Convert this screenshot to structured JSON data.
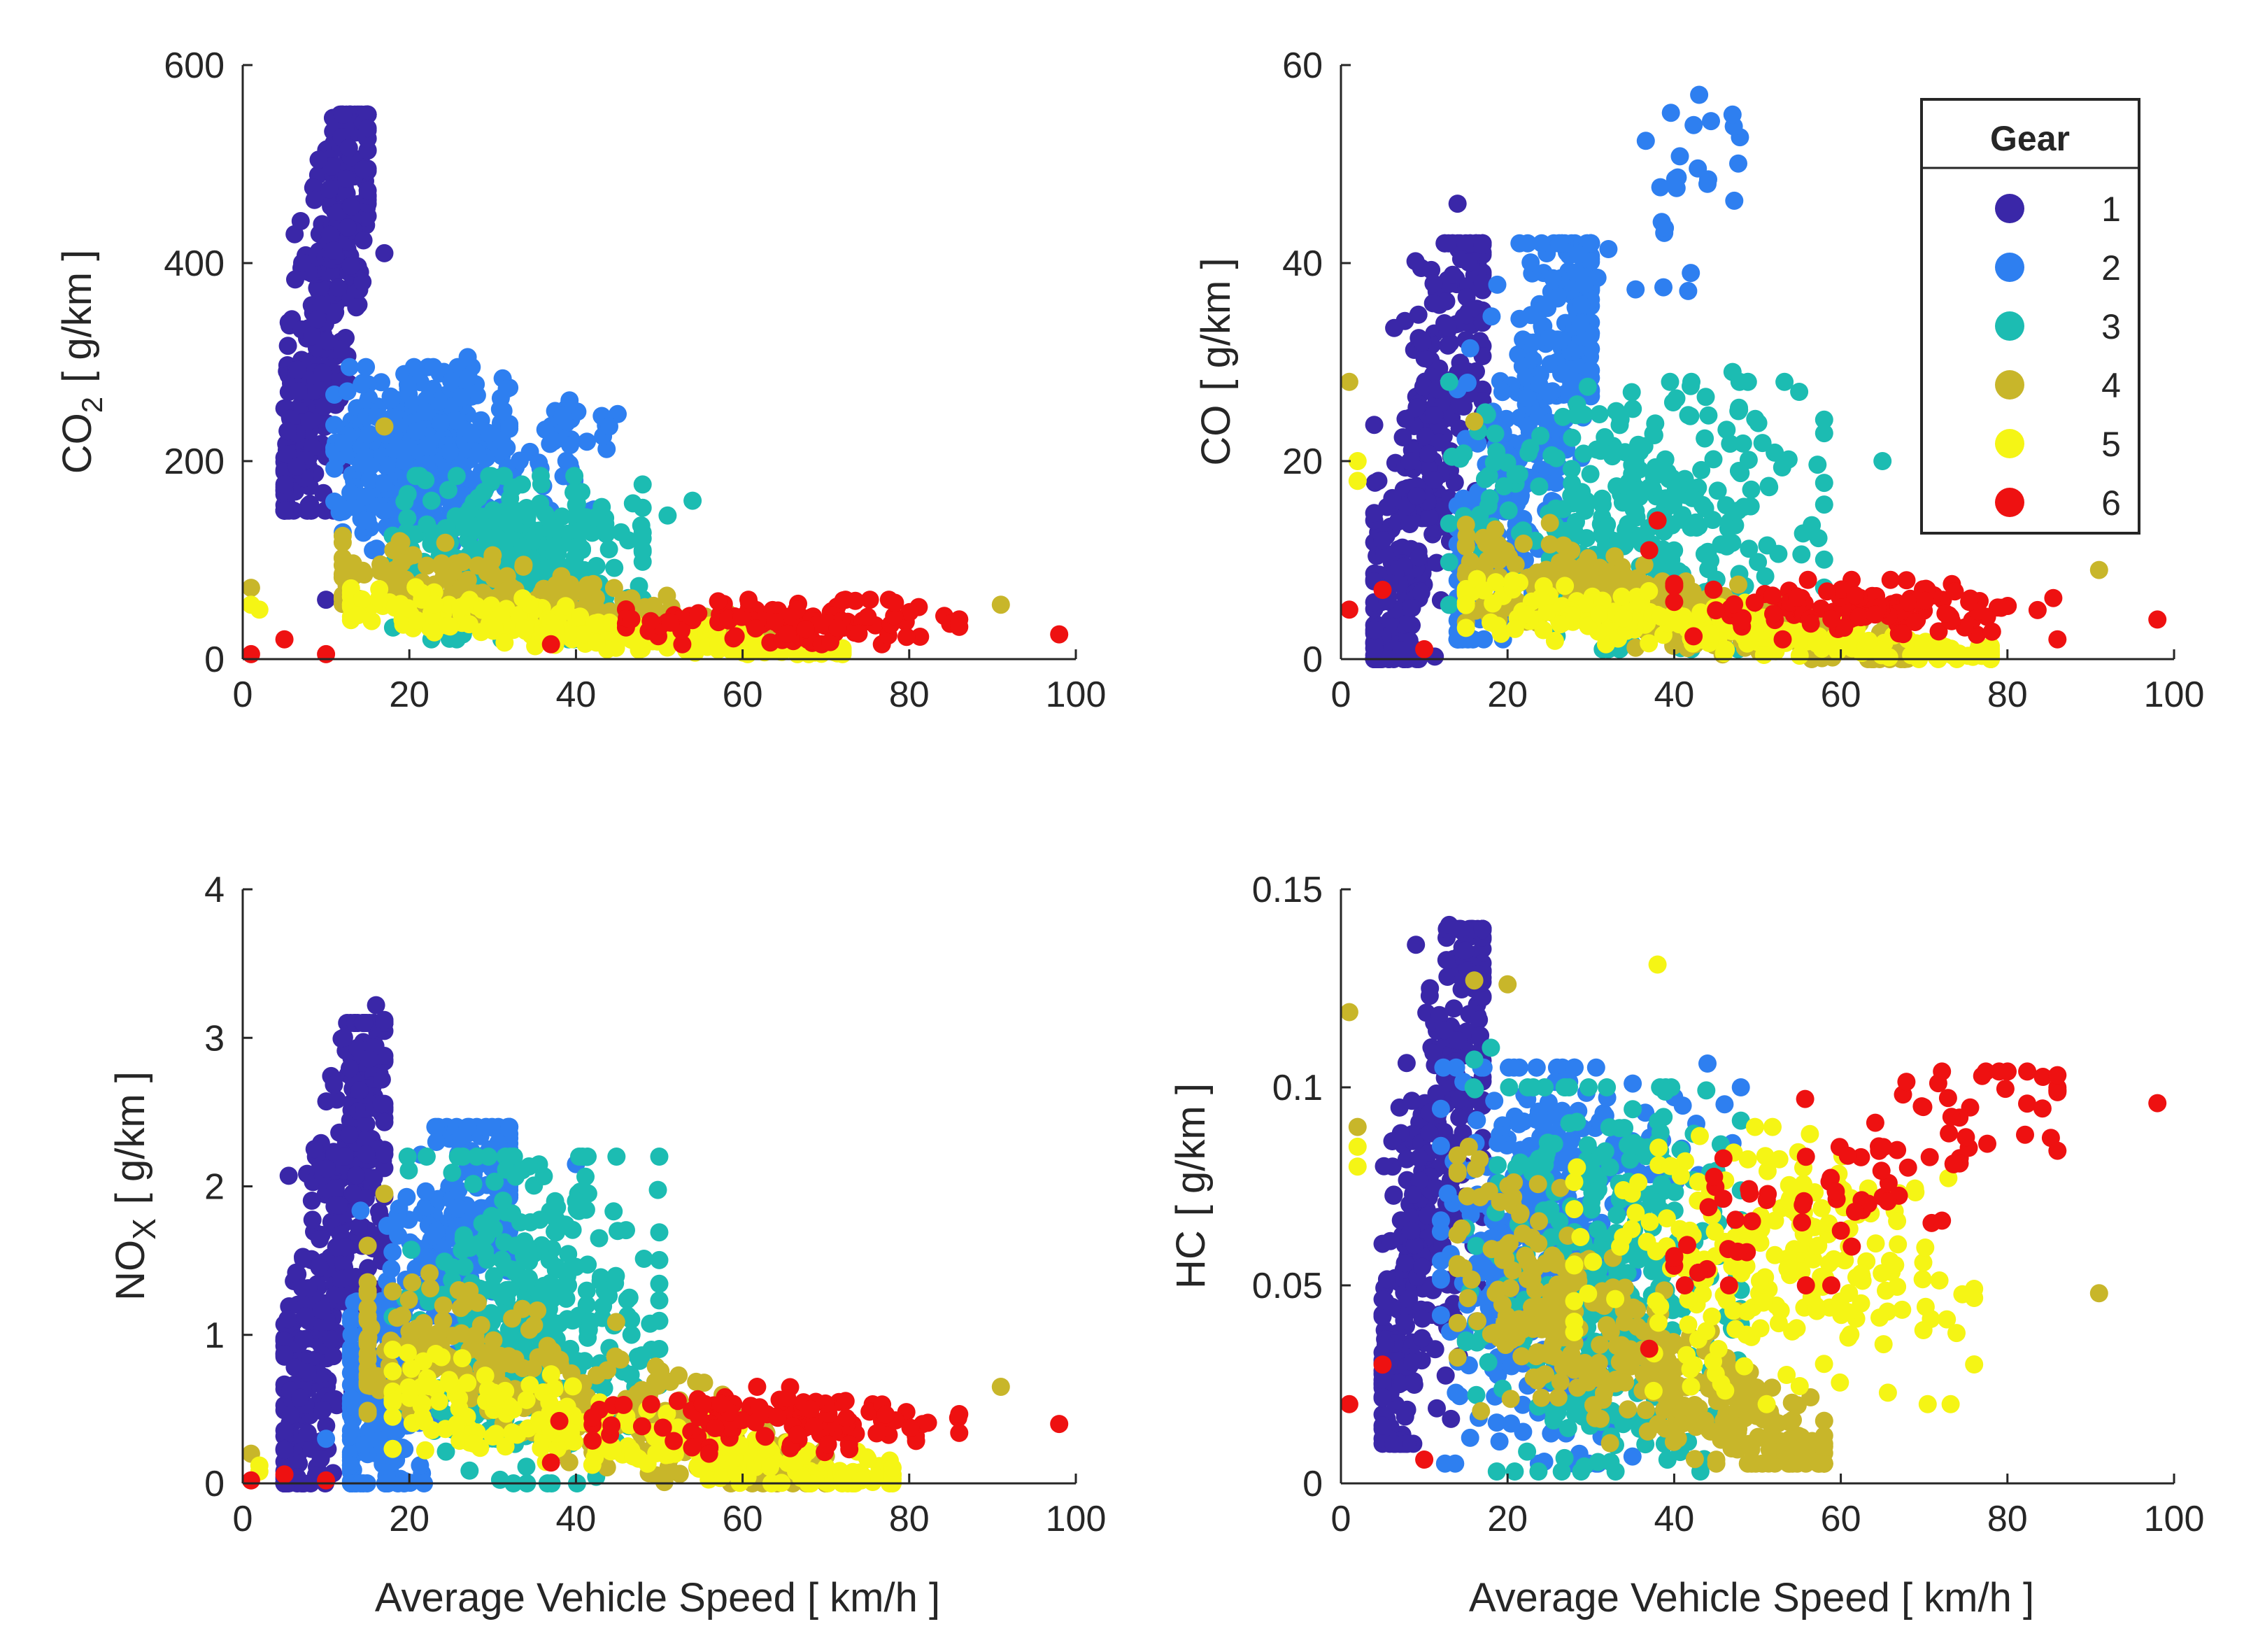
{
  "colors": {
    "gear_1": "#3a27a8",
    "gear_2": "#2e7ff0",
    "gear_3": "#1cbcb2",
    "gear_4": "#c8b62a",
    "gear_5": "#f5f515",
    "gear_6": "#ee1111",
    "axis": "#262626",
    "background": "#ffffff"
  },
  "legend": {
    "title": "Gear",
    "placement": "top-right of CO panel",
    "entries": [
      "1",
      "2",
      "3",
      "4",
      "5",
      "6"
    ]
  },
  "chart_data": [
    {
      "type": "scatter",
      "id": "co2",
      "ylabel_main": "CO",
      "ylabel_sub": "2",
      "ylabel_unit": "[ g/km ]",
      "xlabel": "",
      "xlim": [
        0,
        100
      ],
      "ylim": [
        0,
        600
      ],
      "xticks": [
        "0",
        "20",
        "40",
        "60",
        "80",
        "100"
      ],
      "yticks": [
        "0",
        "200",
        "400",
        "600"
      ],
      "series": [
        {
          "name": "1",
          "clusters": [
            {
              "x": [
                5,
                15
              ],
              "y": [
                150,
                550
              ],
              "n": 350,
              "shape": "rising"
            }
          ],
          "extra": [
            [
              17,
              410
            ],
            [
              10,
              60
            ]
          ]
        },
        {
          "name": "2",
          "clusters": [
            {
              "x": [
                11,
                32
              ],
              "y": [
                110,
                295
              ],
              "n": 420,
              "shape": "blob"
            },
            {
              "x": [
                30,
                45
              ],
              "y": [
                150,
                265
              ],
              "n": 40,
              "shape": "blob"
            }
          ],
          "extra": [
            [
              27,
              305
            ],
            [
              44,
              235
            ],
            [
              15,
              140
            ]
          ]
        },
        {
          "name": "3",
          "clusters": [
            {
              "x": [
                18,
                48
              ],
              "y": [
                20,
                185
              ],
              "n": 330,
              "shape": "blob"
            }
          ],
          "extra": [
            [
              54,
              160
            ],
            [
              51,
              145
            ]
          ]
        },
        {
          "name": "4",
          "clusters": [
            {
              "x": [
                12,
                68
              ],
              "y": [
                10,
                125
              ],
              "n": 300,
              "shape": "falling"
            }
          ],
          "extra": [
            [
              1,
              72
            ],
            [
              17,
              235
            ],
            [
              91,
              55
            ]
          ]
        },
        {
          "name": "5",
          "clusters": [
            {
              "x": [
                13,
                72
              ],
              "y": [
                5,
                80
              ],
              "n": 220,
              "shape": "falling"
            }
          ],
          "extra": [
            [
              2,
              50
            ],
            [
              1,
              55
            ]
          ]
        },
        {
          "name": "6",
          "clusters": [
            {
              "x": [
                46,
                86
              ],
              "y": [
                15,
                60
              ],
              "n": 110,
              "shape": "blob"
            }
          ],
          "extra": [
            [
              1,
              5
            ],
            [
              5,
              20
            ],
            [
              10,
              5
            ],
            [
              98,
              25
            ],
            [
              37,
              15
            ]
          ]
        }
      ]
    },
    {
      "type": "scatter",
      "id": "co",
      "ylabel_main": "CO",
      "ylabel_sub": "",
      "ylabel_unit": "[ g/km ]",
      "xlabel": "",
      "xlim": [
        0,
        100
      ],
      "ylim": [
        0,
        60
      ],
      "xticks": [
        "0",
        "20",
        "40",
        "60",
        "80",
        "100"
      ],
      "yticks": [
        "0",
        "20",
        "40",
        "60"
      ],
      "series": [
        {
          "name": "1",
          "clusters": [
            {
              "x": [
                4,
                17
              ],
              "y": [
                0,
                42
              ],
              "n": 320,
              "shape": "rising"
            }
          ],
          "extra": [
            [
              14,
              46
            ],
            [
              5,
              12
            ]
          ]
        },
        {
          "name": "2",
          "clusters": [
            {
              "x": [
                14,
                30
              ],
              "y": [
                2,
                42
              ],
              "n": 360,
              "shape": "rising"
            },
            {
              "x": [
                28,
                48
              ],
              "y": [
                30,
                57
              ],
              "n": 30,
              "shape": "rising"
            }
          ],
          "extra": [
            [
              43,
              57
            ],
            [
              47,
              55
            ],
            [
              44,
              48
            ],
            [
              42,
              39
            ]
          ]
        },
        {
          "name": "3",
          "clusters": [
            {
              "x": [
                13,
                58
              ],
              "y": [
                1,
                28
              ],
              "n": 300,
              "shape": "blob"
            }
          ],
          "extra": [
            [
              65,
              20
            ],
            [
              55,
              27
            ],
            [
              47,
              29
            ]
          ]
        },
        {
          "name": "4",
          "clusters": [
            {
              "x": [
                15,
                68
              ],
              "y": [
                0,
                14
              ],
              "n": 300,
              "shape": "falling"
            }
          ],
          "extra": [
            [
              1,
              28
            ],
            [
              16,
              24
            ],
            [
              91,
              9
            ]
          ]
        },
        {
          "name": "5",
          "clusters": [
            {
              "x": [
                15,
                78
              ],
              "y": [
                0,
                9
              ],
              "n": 220,
              "shape": "falling"
            }
          ],
          "extra": [
            [
              2,
              20
            ],
            [
              2,
              18
            ]
          ]
        },
        {
          "name": "6",
          "clusters": [
            {
              "x": [
                40,
                86
              ],
              "y": [
                2,
                8
              ],
              "n": 110,
              "shape": "blob"
            }
          ],
          "extra": [
            [
              1,
              5
            ],
            [
              5,
              7
            ],
            [
              10,
              1
            ],
            [
              98,
              4
            ],
            [
              38,
              14
            ],
            [
              37,
              11
            ]
          ]
        }
      ]
    },
    {
      "type": "scatter",
      "id": "nox",
      "ylabel_main": "NO",
      "ylabel_sub": "X",
      "ylabel_unit": "[ g/km ]",
      "xlabel": "Average Vehicle Speed [ km/h ]",
      "xlim": [
        0,
        100
      ],
      "ylim": [
        0,
        4
      ],
      "xticks": [
        "0",
        "20",
        "40",
        "60",
        "80",
        "100"
      ],
      "yticks": [
        "0",
        "1",
        "2",
        "3",
        "4"
      ],
      "series": [
        {
          "name": "1",
          "clusters": [
            {
              "x": [
                5,
                17
              ],
              "y": [
                0,
                3.1
              ],
              "n": 380,
              "shape": "rising"
            }
          ],
          "extra": [
            [
              16,
              3.22
            ],
            [
              17,
              3.12
            ]
          ]
        },
        {
          "name": "2",
          "clusters": [
            {
              "x": [
                13,
                32
              ],
              "y": [
                0,
                2.4
              ],
              "n": 420,
              "shape": "rising"
            }
          ],
          "extra": [
            [
              27,
              2.4
            ],
            [
              40,
              2.15
            ],
            [
              10,
              0.3
            ]
          ]
        },
        {
          "name": "3",
          "clusters": [
            {
              "x": [
                18,
                50
              ],
              "y": [
                0,
                2.2
              ],
              "n": 360,
              "shape": "blob"
            }
          ],
          "extra": [
            [
              45,
              1.7
            ],
            [
              40,
              1.9
            ]
          ]
        },
        {
          "name": "4",
          "clusters": [
            {
              "x": [
                15,
                70
              ],
              "y": [
                0,
                1.6
              ],
              "n": 340,
              "shape": "falling"
            }
          ],
          "extra": [
            [
              1,
              0.2
            ],
            [
              17,
              1.95
            ],
            [
              91,
              0.65
            ]
          ]
        },
        {
          "name": "5",
          "clusters": [
            {
              "x": [
                18,
                78
              ],
              "y": [
                0,
                0.9
              ],
              "n": 230,
              "shape": "falling"
            }
          ],
          "extra": [
            [
              2,
              0.12
            ],
            [
              2,
              0.08
            ]
          ]
        },
        {
          "name": "6",
          "clusters": [
            {
              "x": [
                42,
                86
              ],
              "y": [
                0.2,
                0.65
              ],
              "n": 110,
              "shape": "blob"
            }
          ],
          "extra": [
            [
              1,
              0.02
            ],
            [
              5,
              0.06
            ],
            [
              10,
              0.02
            ],
            [
              98,
              0.4
            ],
            [
              37,
              0.14
            ],
            [
              38,
              0.42
            ]
          ]
        }
      ]
    },
    {
      "type": "scatter",
      "id": "hc",
      "ylabel_main": "HC",
      "ylabel_sub": "",
      "ylabel_unit": "[ g/km ]",
      "xlabel": "Average Vehicle Speed [ km/h ]",
      "xlim": [
        0,
        100
      ],
      "ylim": [
        0,
        0.15
      ],
      "xticks": [
        "0",
        "20",
        "40",
        "60",
        "80",
        "100"
      ],
      "yticks": [
        "0",
        "0.05",
        "0.1",
        "0.15"
      ],
      "series": [
        {
          "name": "1",
          "clusters": [
            {
              "x": [
                5,
                17
              ],
              "y": [
                0.01,
                0.14
              ],
              "n": 360,
              "shape": "rising"
            }
          ],
          "extra": [
            [
              13,
              0.141
            ],
            [
              9,
              0.136
            ]
          ]
        },
        {
          "name": "2",
          "clusters": [
            {
              "x": [
                12,
                35
              ],
              "y": [
                0.005,
                0.105
              ],
              "n": 400,
              "shape": "blob"
            },
            {
              "x": [
                28,
                47
              ],
              "y": [
                0.07,
                0.105
              ],
              "n": 30,
              "shape": "blob"
            }
          ],
          "extra": [
            [
              44,
              0.106
            ],
            [
              48,
              0.1
            ]
          ]
        },
        {
          "name": "3",
          "clusters": [
            {
              "x": [
                15,
                48
              ],
              "y": [
                0.003,
                0.1
              ],
              "n": 360,
              "shape": "blob"
            }
          ],
          "extra": [
            [
              16,
              0.107
            ],
            [
              18,
              0.11
            ]
          ]
        },
        {
          "name": "4",
          "clusters": [
            {
              "x": [
                14,
                58
              ],
              "y": [
                0.005,
                0.085
              ],
              "n": 360,
              "shape": "falling"
            }
          ],
          "extra": [
            [
              1,
              0.119
            ],
            [
              16,
              0.127
            ],
            [
              91,
              0.048
            ],
            [
              20,
              0.126
            ],
            [
              2,
              0.09
            ]
          ]
        },
        {
          "name": "5",
          "clusters": [
            {
              "x": [
                28,
                76
              ],
              "y": [
                0.02,
                0.09
              ],
              "n": 230,
              "shape": "blob"
            }
          ],
          "extra": [
            [
              2,
              0.085
            ],
            [
              2,
              0.08
            ],
            [
              38,
              0.131
            ]
          ]
        },
        {
          "name": "6",
          "clusters": [
            {
              "x": [
                40,
                86
              ],
              "y": [
                0.05,
                0.104
              ],
              "n": 90,
              "shape": "rising"
            }
          ],
          "extra": [
            [
              1,
              0.02
            ],
            [
              5,
              0.03
            ],
            [
              10,
              0.006
            ],
            [
              98,
              0.096
            ],
            [
              37,
              0.034
            ],
            [
              79,
              0.104
            ],
            [
              86,
              0.084
            ]
          ]
        }
      ]
    }
  ]
}
